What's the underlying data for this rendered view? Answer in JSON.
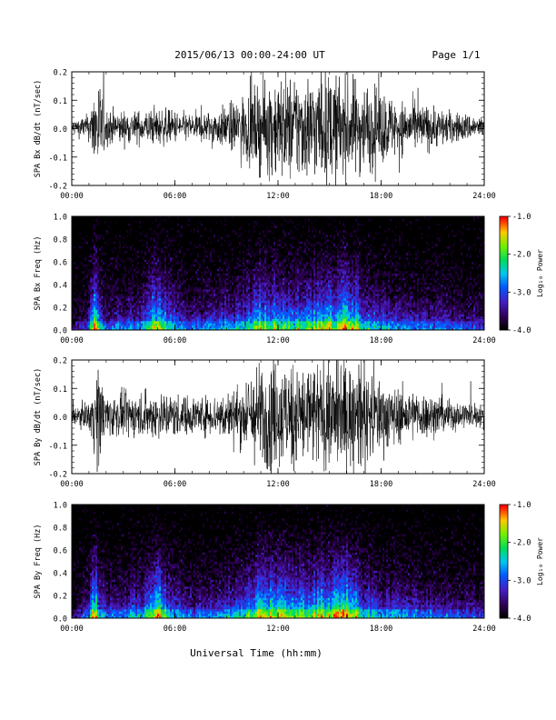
{
  "header": {
    "title": "2015/06/13  00:00-24:00 UT",
    "page": "Page 1/1"
  },
  "chart_data": [
    {
      "type": "line",
      "ylabel": "SPA Bx dB/dt (nT/sec)",
      "ylim": [
        -0.2,
        0.2
      ],
      "yticks": [
        "-0.2",
        "-0.1",
        "0.0",
        "0.1",
        "0.2"
      ],
      "xticks": [
        "00:00",
        "06:00",
        "12:00",
        "18:00",
        "24:00"
      ],
      "xlim_hours": [
        0,
        24
      ],
      "series": [
        {
          "color": "#000000",
          "hours": [
            0,
            1,
            1.5,
            2,
            3,
            4,
            5,
            6,
            7,
            8,
            9,
            10,
            11,
            12,
            13,
            14,
            15,
            16,
            17,
            18,
            19,
            20,
            21,
            22,
            23,
            24
          ],
          "amplitude": [
            0.025,
            0.05,
            0.2,
            0.07,
            0.06,
            0.06,
            0.07,
            0.06,
            0.05,
            0.06,
            0.08,
            0.12,
            0.16,
            0.2,
            0.2,
            0.2,
            0.2,
            0.19,
            0.17,
            0.14,
            0.1,
            0.09,
            0.08,
            0.06,
            0.05,
            0.04
          ]
        }
      ]
    },
    {
      "type": "heatmap",
      "ylabel": "SPA Bx Freq (Hz)",
      "ylim": [
        0,
        1.0
      ],
      "yticks": [
        "0.0",
        "0.2",
        "0.4",
        "0.6",
        "0.8",
        "1.0"
      ],
      "xticks": [
        "00:00",
        "06:00",
        "12:00",
        "18:00",
        "24:00"
      ],
      "colorbar": {
        "label": "Log₁₀ Power",
        "range": [
          -4.0,
          -1.0
        ],
        "ticks": [
          "-1.0",
          "-2.0",
          "-3.0",
          "-4.0"
        ]
      },
      "activity_hours": [
        0,
        1,
        1.3,
        1.6,
        2,
        3,
        4,
        5,
        5.3,
        6,
        7,
        8,
        9,
        10,
        11,
        12,
        13,
        14,
        15,
        16,
        16.5,
        17,
        18,
        20,
        22,
        24
      ],
      "activity_levels": [
        0.2,
        0.4,
        0.9,
        0.6,
        0.4,
        0.45,
        0.45,
        0.8,
        0.7,
        0.5,
        0.4,
        0.45,
        0.5,
        0.55,
        0.75,
        0.7,
        0.65,
        0.7,
        0.75,
        0.9,
        0.8,
        0.6,
        0.5,
        0.45,
        0.4,
        0.35
      ]
    },
    {
      "type": "line",
      "ylabel": "SPA By dB/dt (nT/sec)",
      "ylim": [
        -0.2,
        0.2
      ],
      "yticks": [
        "-0.2",
        "-0.1",
        "0.0",
        "0.1",
        "0.2"
      ],
      "xticks": [
        "00:00",
        "06:00",
        "12:00",
        "18:00",
        "24:00"
      ],
      "xlim_hours": [
        0,
        24
      ],
      "series": [
        {
          "color": "#000000",
          "hours": [
            0,
            1,
            1.5,
            2,
            3,
            4,
            5,
            6,
            7,
            8,
            9,
            10,
            11,
            12,
            13,
            14,
            15,
            16,
            17,
            18,
            19,
            20,
            21,
            22,
            23,
            24
          ],
          "amplitude": [
            0.03,
            0.05,
            0.2,
            0.08,
            0.08,
            0.08,
            0.09,
            0.08,
            0.07,
            0.07,
            0.09,
            0.12,
            0.2,
            0.2,
            0.2,
            0.2,
            0.2,
            0.2,
            0.18,
            0.14,
            0.1,
            0.09,
            0.08,
            0.06,
            0.05,
            0.04
          ]
        }
      ]
    },
    {
      "type": "heatmap",
      "ylabel": "SPA By Freq (Hz)",
      "ylim": [
        0,
        1.0
      ],
      "yticks": [
        "0.0",
        "0.2",
        "0.4",
        "0.6",
        "0.8",
        "1.0"
      ],
      "xticks": [
        "00:00",
        "06:00",
        "12:00",
        "18:00",
        "24:00"
      ],
      "colorbar": {
        "label": "Log₁₀ Power",
        "range": [
          -4.0,
          -1.0
        ],
        "ticks": [
          "-1.0",
          "-2.0",
          "-3.0",
          "-4.0"
        ]
      },
      "activity_hours": [
        0,
        1,
        1.3,
        1.6,
        2,
        3,
        4,
        5,
        5.3,
        6,
        7,
        8,
        9,
        10,
        11,
        12,
        13,
        14,
        15,
        16,
        16.5,
        17,
        18,
        20,
        22,
        24
      ],
      "activity_levels": [
        0.2,
        0.4,
        0.9,
        0.6,
        0.4,
        0.5,
        0.5,
        0.85,
        0.7,
        0.5,
        0.4,
        0.45,
        0.5,
        0.6,
        0.8,
        0.75,
        0.7,
        0.75,
        0.8,
        0.9,
        0.8,
        0.6,
        0.5,
        0.45,
        0.4,
        0.35
      ]
    }
  ],
  "xlabel": "Universal Time (hh:mm)",
  "colors": {
    "plot_frame": "#000000",
    "background": "#ffffff"
  }
}
